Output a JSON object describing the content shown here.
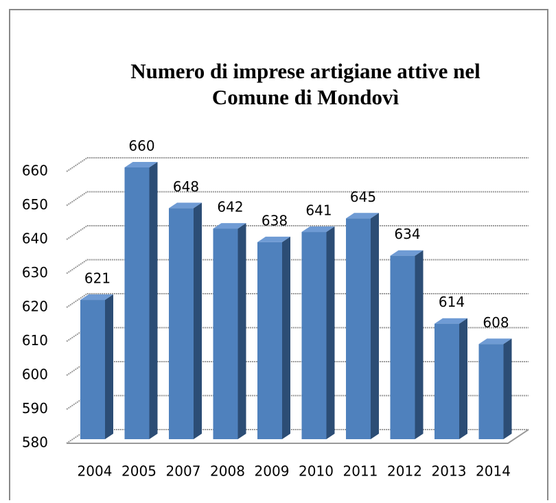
{
  "chart_data": {
    "type": "bar3d",
    "title": "Numero di imprese artigiane attive nel Comune di Mondovì",
    "categories": [
      "2004",
      "2005",
      "2007",
      "2008",
      "2009",
      "2010",
      "2011",
      "2012",
      "2013",
      "2014"
    ],
    "values": [
      621,
      660,
      648,
      642,
      638,
      641,
      645,
      634,
      614,
      608
    ],
    "color": "#4f81bd",
    "ylim": [
      580,
      660
    ],
    "yticks": [
      580,
      590,
      600,
      610,
      620,
      630,
      640,
      650,
      660
    ],
    "grid": true
  }
}
